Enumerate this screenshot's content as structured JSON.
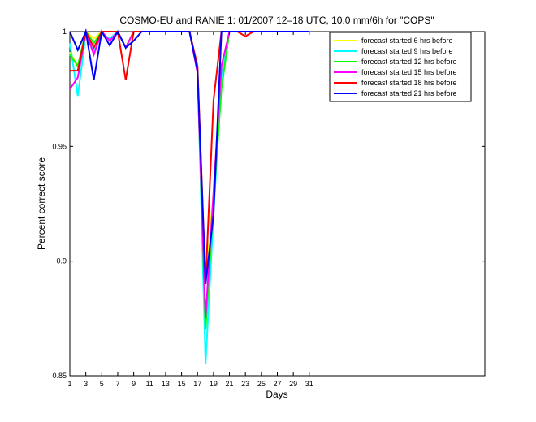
{
  "chart_data": {
    "type": "line",
    "title": "COSMO-EU and RANIE 1: 01/2007 12–18 UTC, 10.0 mm/6h for \"COPS\"",
    "xlabel": "Days",
    "ylabel": "Percent correct score",
    "xlim": [
      1,
      53
    ],
    "ylim": [
      0.85,
      1.0
    ],
    "xticks": [
      "1",
      "3",
      "5",
      "7",
      "9",
      "11",
      "13",
      "15",
      "17",
      "19",
      "21",
      "23",
      "25",
      "27",
      "29",
      "31"
    ],
    "yticks": [
      "0.85",
      "0.9",
      "0.95",
      "1"
    ],
    "grid": false,
    "legend_position": "top-right",
    "series": [
      {
        "name": "forecast started 6 hrs before",
        "color": "#ffff00",
        "x": [
          1,
          2,
          3,
          4,
          5,
          6,
          7,
          8,
          9,
          10,
          11,
          12,
          13,
          14,
          15,
          16,
          17,
          18,
          19,
          20,
          21,
          22,
          23,
          24,
          25,
          26,
          27,
          28,
          29,
          30,
          31
        ],
        "y": [
          0.991,
          0.985,
          1,
          0.997,
          1,
          1,
          1,
          0.993,
          1,
          1,
          1,
          1,
          1,
          1,
          1,
          1,
          0.985,
          0.89,
          0.93,
          0.985,
          1,
          1,
          1,
          1,
          1,
          1,
          1,
          1,
          1,
          1,
          1
        ]
      },
      {
        "name": "forecast started 9 hrs before",
        "color": "#00ffff",
        "x": [
          1,
          2,
          3,
          4,
          5,
          6,
          7,
          8,
          9,
          10,
          11,
          12,
          13,
          14,
          15,
          16,
          17,
          18,
          19,
          20,
          21,
          22,
          23,
          24,
          25,
          26,
          27,
          28,
          29,
          30,
          31
        ],
        "y": [
          0.995,
          0.972,
          0.999,
          0.991,
          0.999,
          0.997,
          1,
          0.993,
          1,
          1,
          1,
          1,
          1,
          1,
          1,
          1,
          0.985,
          0.855,
          0.92,
          0.98,
          1,
          1,
          1,
          1,
          1,
          1,
          1,
          1,
          1,
          1,
          1
        ]
      },
      {
        "name": "forecast started 12 hrs before",
        "color": "#00ff00",
        "x": [
          1,
          2,
          3,
          4,
          5,
          6,
          7,
          8,
          9,
          10,
          11,
          12,
          13,
          14,
          15,
          16,
          17,
          18,
          19,
          20,
          21,
          22,
          23,
          24,
          25,
          26,
          27,
          28,
          29,
          30,
          31
        ],
        "y": [
          0.99,
          0.985,
          1,
          0.995,
          1,
          1,
          1,
          0.993,
          1,
          1,
          1,
          1,
          1,
          1,
          1,
          1,
          0.983,
          0.87,
          0.925,
          0.975,
          1,
          1,
          1,
          1,
          1,
          1,
          1,
          1,
          1,
          1,
          1
        ]
      },
      {
        "name": "forecast started 15 hrs before",
        "color": "#ff00ff",
        "x": [
          1,
          2,
          3,
          4,
          5,
          6,
          7,
          8,
          9,
          10,
          11,
          12,
          13,
          14,
          15,
          16,
          17,
          18,
          19,
          20,
          21,
          22,
          23,
          24,
          25,
          26,
          27,
          28,
          29,
          30,
          31
        ],
        "y": [
          0.975,
          0.98,
          1,
          0.99,
          1,
          0.996,
          1,
          0.993,
          1,
          1,
          1,
          1,
          1,
          1,
          1,
          1,
          0.982,
          0.875,
          0.93,
          0.985,
          1,
          1,
          1,
          1,
          1,
          1,
          1,
          1,
          1,
          1,
          1
        ]
      },
      {
        "name": "forecast started 18 hrs before",
        "color": "#ff0000",
        "x": [
          1,
          2,
          3,
          4,
          5,
          6,
          7,
          8,
          9,
          10,
          11,
          12,
          13,
          14,
          15,
          16,
          17,
          18,
          19,
          20,
          21,
          22,
          23,
          24,
          25,
          26,
          27,
          28,
          29,
          30,
          31
        ],
        "y": [
          0.983,
          0.983,
          1,
          0.993,
          1,
          1,
          1,
          0.979,
          1,
          1,
          1,
          1,
          1,
          1,
          1,
          1,
          0.985,
          0.89,
          0.97,
          1,
          1,
          1,
          0.998,
          1,
          1,
          1,
          1,
          1,
          1,
          1,
          1
        ]
      },
      {
        "name": "forecast started 21 hrs before",
        "color": "#0000ff",
        "x": [
          1,
          2,
          3,
          4,
          5,
          6,
          7,
          8,
          9,
          10,
          11,
          12,
          13,
          14,
          15,
          16,
          17,
          18,
          19,
          20,
          21,
          22,
          23,
          24,
          25,
          26,
          27,
          28,
          29,
          30,
          31
        ],
        "y": [
          1,
          0.992,
          1,
          0.979,
          1,
          0.994,
          1,
          0.993,
          0.996,
          1,
          1,
          1,
          1,
          1,
          1,
          1,
          0.983,
          0.89,
          0.92,
          1,
          1,
          1,
          1,
          1,
          1,
          1,
          1,
          1,
          1,
          1,
          1
        ]
      }
    ]
  }
}
